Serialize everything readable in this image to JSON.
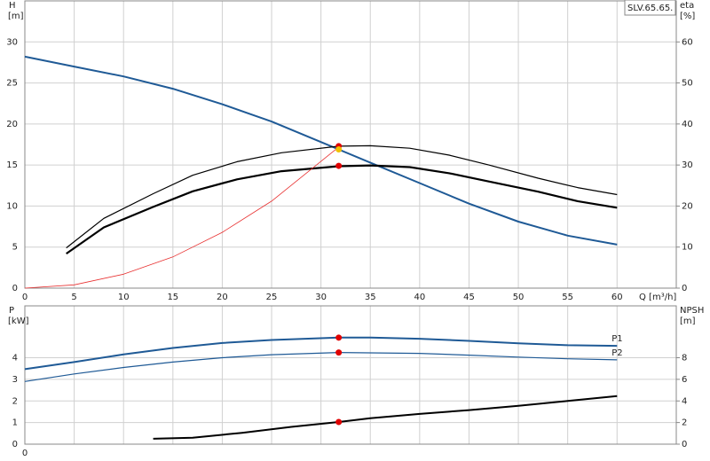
{
  "chart_data": [
    {
      "type": "line",
      "label": "SLV.65.65.",
      "ylabel": "H",
      "yunit": "[m]",
      "y2label": "eta",
      "y2unit": "[%]",
      "xlabel": "Q [m³/h]",
      "xlim": [
        0,
        66
      ],
      "xticks": [
        0,
        5,
        10,
        15,
        20,
        25,
        30,
        35,
        40,
        45,
        50,
        55,
        60
      ],
      "ylim": [
        0,
        35
      ],
      "yticks": [
        0,
        5,
        10,
        15,
        20,
        25,
        30
      ],
      "y2lim": [
        0,
        70
      ],
      "y2ticks": [
        0,
        10,
        20,
        30,
        40,
        50,
        60
      ],
      "grid": true,
      "series": [
        {
          "color": "#1f5a96",
          "width": 2,
          "x": [
            0,
            5,
            10,
            15,
            20,
            25,
            30,
            35,
            40,
            45,
            50,
            55,
            60
          ],
          "values": [
            28.2,
            27.0,
            25.8,
            24.3,
            22.4,
            20.3,
            17.8,
            15.3,
            12.8,
            10.3,
            8.1,
            6.4,
            5.3
          ]
        },
        {
          "color": "#000000",
          "width": 1.2,
          "axis": "y2",
          "x": [
            4.2,
            8,
            13,
            17,
            21.5,
            26,
            31.8,
            35,
            39,
            43,
            47,
            52,
            56,
            60
          ],
          "values": [
            9.8,
            17,
            23,
            27.5,
            30.8,
            33,
            34.6,
            34.7,
            34.1,
            32.4,
            30,
            26.8,
            24.5,
            22.8
          ]
        },
        {
          "color": "#000000",
          "width": 2.2,
          "axis": "y2",
          "x": [
            4.2,
            8,
            13,
            17,
            21.5,
            26,
            31.8,
            35,
            39,
            43,
            47,
            52,
            56,
            60
          ],
          "values": [
            8.4,
            14.8,
            19.8,
            23.6,
            26.5,
            28.5,
            29.7,
            29.9,
            29.5,
            28,
            26,
            23.5,
            21.2,
            19.6
          ]
        },
        {
          "color": "#e83030",
          "width": 0.8,
          "x": [
            0,
            5,
            10,
            15,
            20,
            25,
            31.8
          ],
          "values": [
            0,
            0.4,
            1.7,
            3.8,
            6.8,
            10.6,
            17.2
          ]
        },
        {
          "color": "#e00000",
          "marker": "dot",
          "x": [
            31.8
          ],
          "values": [
            17.3
          ]
        },
        {
          "color": "#f0c000",
          "marker": "dot",
          "x": [
            31.8
          ],
          "values": [
            16.9
          ]
        },
        {
          "color": "#e00000",
          "marker": "dot",
          "axis": "y2",
          "x": [
            31.8
          ],
          "values": [
            29.8
          ]
        }
      ]
    },
    {
      "type": "line",
      "ylabel": "P",
      "yunit": "[kW]",
      "y2label": "NPSH",
      "y2unit": "[m]",
      "xlim": [
        0,
        66
      ],
      "xticks": [
        0,
        5,
        10,
        15,
        20,
        25,
        30,
        35,
        40,
        45,
        50,
        55,
        60
      ],
      "ylim": [
        0,
        6.4
      ],
      "yticks": [
        0,
        1,
        2,
        3,
        4
      ],
      "y2lim": [
        0,
        12.8
      ],
      "y2ticks": [
        0,
        2,
        4,
        6,
        8
      ],
      "grid": true,
      "series": [
        {
          "name": "P1",
          "color": "#1f5a96",
          "width": 2,
          "x": [
            0,
            5,
            10,
            15,
            20,
            25,
            31.8,
            35,
            40,
            45,
            50,
            55,
            60
          ],
          "values": [
            3.47,
            3.8,
            4.15,
            4.45,
            4.68,
            4.82,
            4.93,
            4.93,
            4.88,
            4.78,
            4.67,
            4.58,
            4.55
          ]
        },
        {
          "name": "P2",
          "color": "#1f5a96",
          "width": 1.2,
          "x": [
            0,
            5,
            10,
            15,
            20,
            25,
            31.8,
            40,
            45,
            50,
            55,
            60
          ],
          "values": [
            2.9,
            3.25,
            3.55,
            3.8,
            4.0,
            4.14,
            4.24,
            4.2,
            4.12,
            4.03,
            3.95,
            3.9
          ]
        },
        {
          "color": "#000000",
          "width": 2,
          "axis": "y2",
          "x": [
            13,
            17,
            22,
            27,
            31.8,
            35,
            40,
            45,
            50,
            55,
            60
          ],
          "values": [
            0.5,
            0.6,
            1.05,
            1.6,
            2.05,
            2.4,
            2.8,
            3.15,
            3.55,
            4.0,
            4.45
          ]
        },
        {
          "color": "#e00000",
          "marker": "dot",
          "x": [
            31.8
          ],
          "values": [
            4.93
          ]
        },
        {
          "color": "#e00000",
          "marker": "dot",
          "x": [
            31.8
          ],
          "values": [
            4.24
          ]
        },
        {
          "color": "#e00000",
          "marker": "dot",
          "axis": "y2",
          "x": [
            31.8
          ],
          "values": [
            2.05
          ]
        }
      ]
    }
  ]
}
